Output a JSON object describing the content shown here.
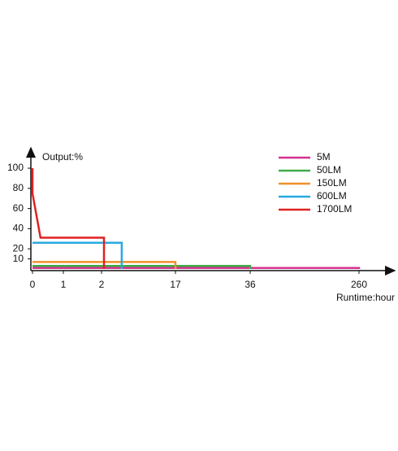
{
  "chart_data": {
    "type": "line",
    "y_label": "Output:%",
    "x_label": "Runtime:hour",
    "ylim": [
      0,
      100
    ],
    "yticks": [
      10,
      20,
      40,
      60,
      80,
      100
    ],
    "xlim": [
      0,
      260
    ],
    "xticks": [
      0,
      1,
      2,
      17,
      36,
      260
    ],
    "series": [
      {
        "name": "5M",
        "color": "#d6318f",
        "x": [
          0,
          260,
          260
        ],
        "values": [
          1,
          1,
          0
        ]
      },
      {
        "name": "50LM",
        "color": "#3cad49",
        "x": [
          0,
          36,
          36
        ],
        "values": [
          3,
          3,
          0
        ]
      },
      {
        "name": "150LM",
        "color": "#f0902a",
        "x": [
          0,
          17,
          17
        ],
        "values": [
          7,
          7,
          0
        ]
      },
      {
        "name": "600LM",
        "color": "#27a9e1",
        "x": [
          0,
          6.1,
          6.1
        ],
        "values": [
          26,
          26,
          0
        ]
      },
      {
        "name": "1700LM",
        "color": "#e02121",
        "x": [
          0,
          0,
          0.26,
          2.5,
          2.5
        ],
        "values": [
          100,
          75,
          31,
          31,
          0
        ]
      }
    ]
  }
}
